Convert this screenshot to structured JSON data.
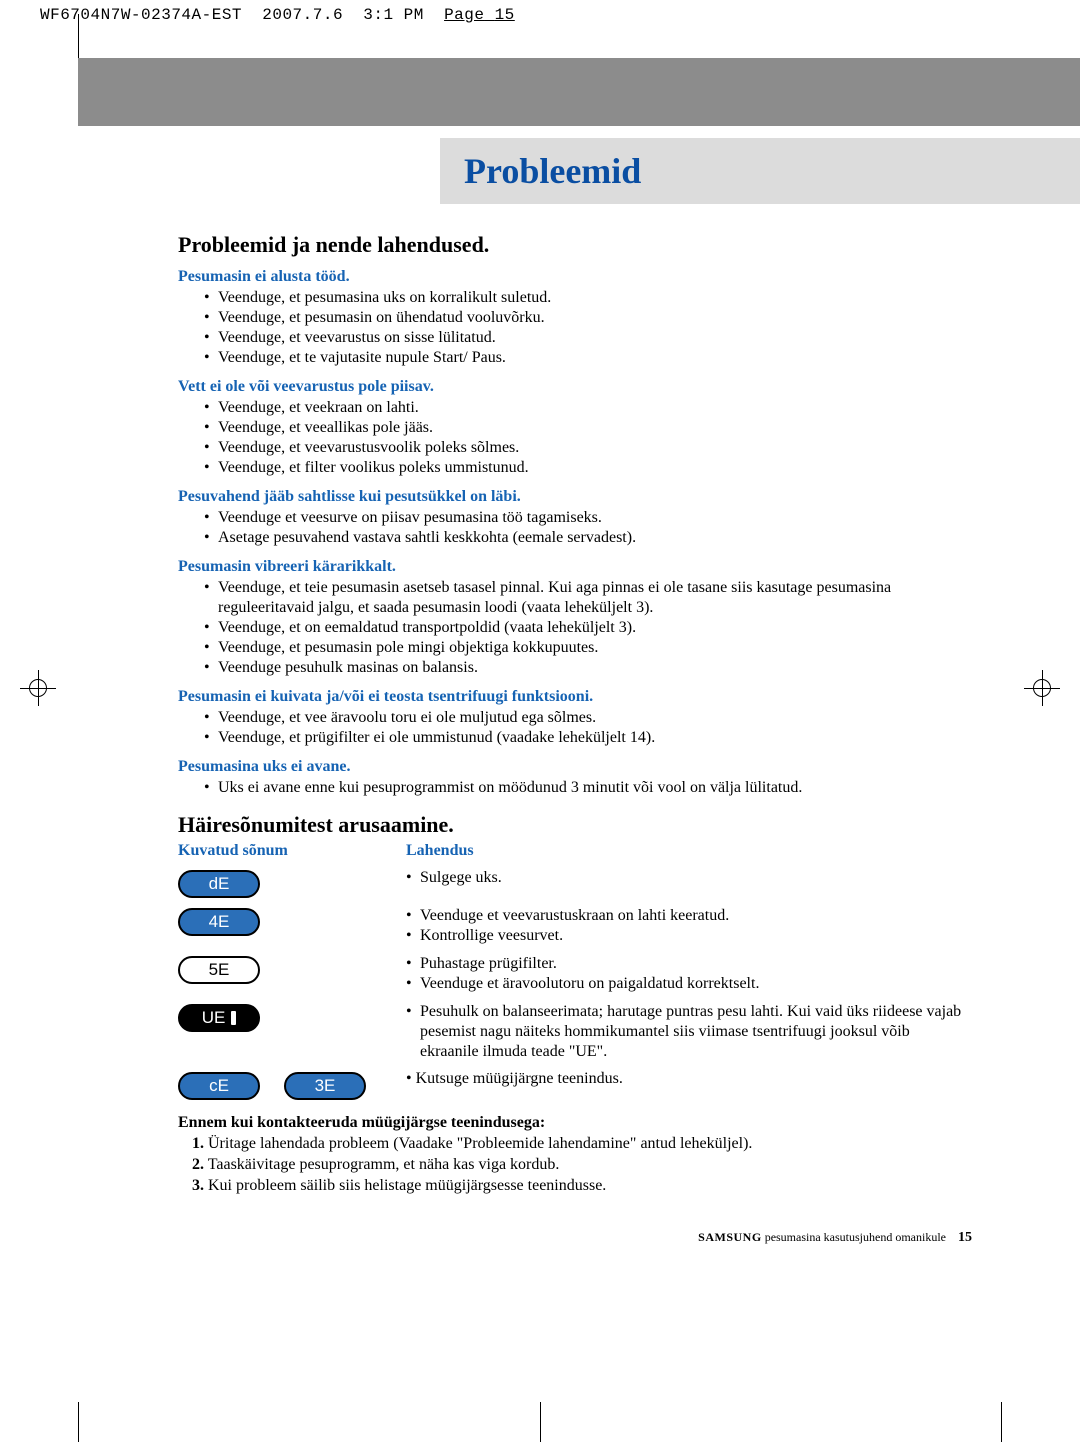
{
  "page_marker": {
    "code": "WF6704N7W-02374A-EST",
    "date": "2007.7.6",
    "time": "3:1 PM",
    "label": "Page",
    "num": "15"
  },
  "title": "Probleemid",
  "section1": {
    "heading": "Probleemid ja nende lahendused.",
    "problems": [
      {
        "sub": "Pesumasin ei alusta tööd.",
        "items": [
          "Veenduge, et pesumasina uks on korralikult suletud.",
          "Veenduge, et pesumasin on ühendatud vooluvõrku.",
          "Veenduge, et veevarustus on sisse lülitatud.",
          "Veenduge, et te vajutasite nupule Start/ Paus."
        ]
      },
      {
        "sub": "Vett ei ole või veevarustus pole piisav.",
        "items": [
          "Veenduge, et veekraan on lahti.",
          "Veenduge, et veeallikas pole jääs.",
          "Veenduge, et veevarustusvoolik poleks sõlmes.",
          "Veenduge, et filter voolikus poleks ummistunud."
        ]
      },
      {
        "sub": "Pesuvahend jääb sahtlisse kui pesutsükkel on läbi.",
        "items": [
          "Veenduge et veesurve on piisav pesumasina töö tagamiseks.",
          "Asetage pesuvahend vastava sahtli keskkohta (eemale servadest)."
        ]
      },
      {
        "sub": "Pesumasin vibreeri kärarikkalt.",
        "items": [
          "Veenduge, et teie pesumasin asetseb tasasel pinnal. Kui aga pinnas ei ole tasane siis kasutage pesumasina reguleeritavaid jalgu, et saada pesumasin loodi (vaata leheküljelt 3).",
          "Veenduge, et on eemaldatud transportpoldid (vaata leheküljelt 3).",
          "Veenduge, et pesumasin pole mingi objektiga kokkupuutes.",
          "Veenduge pesuhulk masinas on balansis."
        ]
      },
      {
        "sub": "Pesumasin ei kuivata ja/või ei teosta tsentrifuugi funktsiooni.",
        "items": [
          "Veenduge, et vee äravoolu toru ei ole muljutud ega sõlmes.",
          "Veenduge, et prügifilter ei ole ummistunud (vaadake leheküljelt 14)."
        ]
      },
      {
        "sub": "Pesumasina uks ei avane.",
        "items": [
          "Uks ei avane enne kui pesuprogrammist on möödunud 3 minutit või vool on välja lülitatud."
        ]
      }
    ]
  },
  "section2": {
    "heading": "Häiresõnumitest arusaamine.",
    "col_msg": "Kuvatud sõnum",
    "col_sol": "Lahendus",
    "rows": [
      {
        "codes": [
          {
            "text": "dE",
            "style": "blue"
          }
        ],
        "items": [
          "Sulgege uks."
        ]
      },
      {
        "codes": [
          {
            "text": "4E",
            "style": "blue"
          }
        ],
        "items": [
          "Veenduge et veevarustuskraan on lahti keeratud.",
          "Kontrollige veesurvet."
        ]
      },
      {
        "codes": [
          {
            "text": "5E",
            "style": "white"
          }
        ],
        "items": [
          "Puhastage prügifilter.",
          "Veenduge et äravoolutoru on paigaldatud korrektselt."
        ]
      },
      {
        "codes": [
          {
            "text": "UE",
            "style": "black",
            "door": true
          }
        ],
        "items": [
          "Pesuhulk on balanseerimata; harutage puntras pesu lahti. Kui vaid üks riideese vajab pesemist nagu näiteks hommikumantel siis viimase tsentrifuugi jooksul võib ekraanile ilmuda teade \"UE\"."
        ]
      },
      {
        "codes": [
          {
            "text": "cE",
            "style": "blue"
          },
          {
            "text": "3E",
            "style": "blue"
          }
        ],
        "plain": "• Kutsuge müügijärgne teenindus."
      }
    ]
  },
  "footer_section": {
    "heading": "Ennem kui kontakteeruda müügijärgse teenindusega:",
    "items": [
      "Üritage lahendada probleem (Vaadake \"Probleemide lahendamine\" antud leheküljel).",
      "Taaskäivitage pesuprogramm, et näha kas viga kordub.",
      "Kui probleem säilib siis helistage müügijärgsesse teenindusse."
    ]
  },
  "page_footer": {
    "brand": "SAMSUNG",
    "text": " pesumasina kasutusjuhend omanikule",
    "page": "15"
  }
}
